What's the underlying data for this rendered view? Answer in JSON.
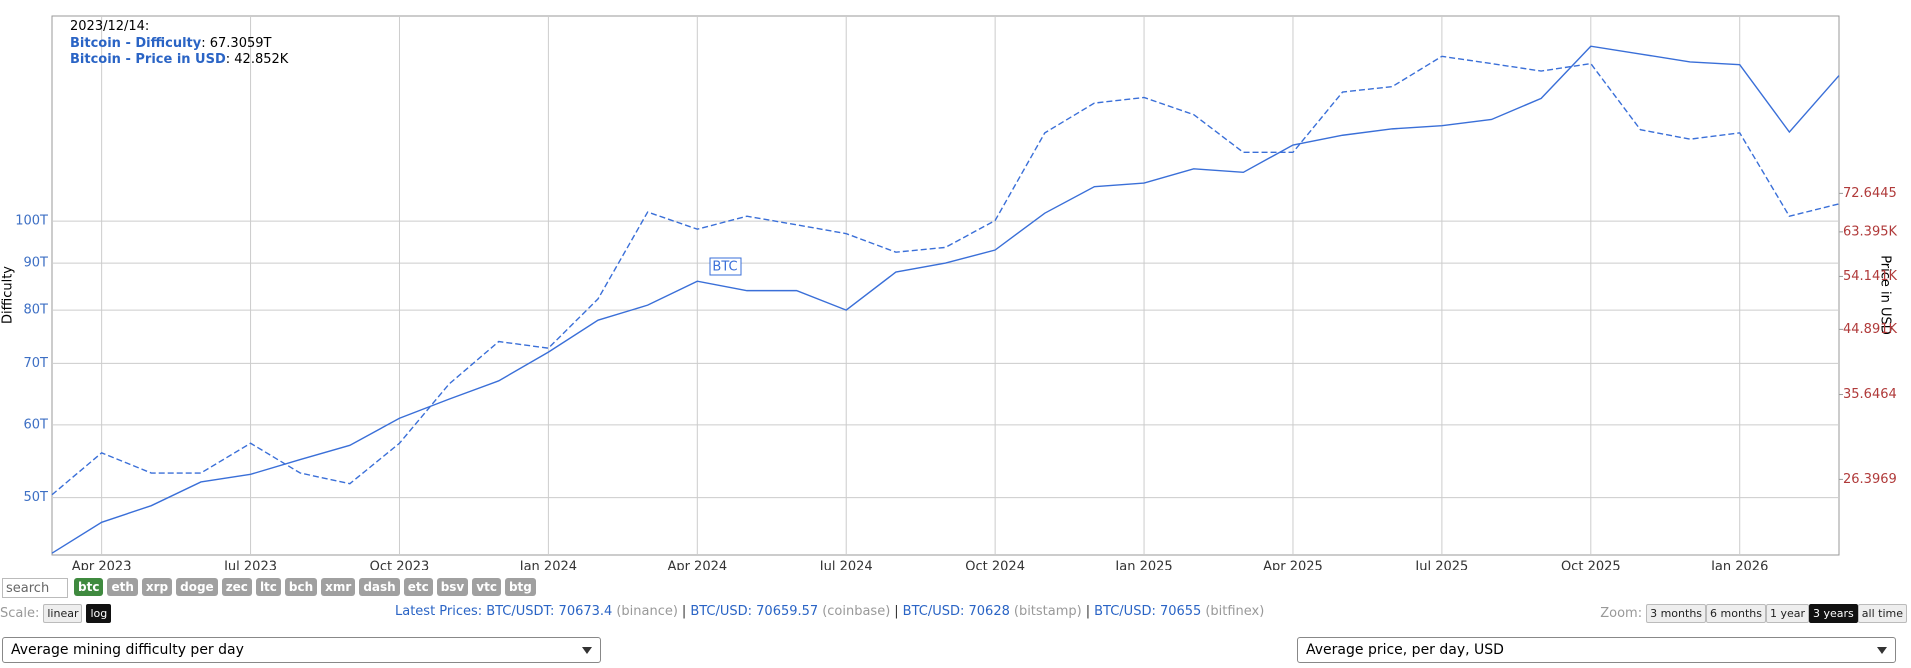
{
  "chart_data": {
    "type": "line",
    "x": [
      "2023-03",
      "2023-04",
      "2023-05",
      "2023-06",
      "2023-07",
      "2023-08",
      "2023-09",
      "2023-10",
      "2023-11",
      "2023-12",
      "2024-01",
      "2024-02",
      "2024-03",
      "2024-04",
      "2024-05",
      "2024-06",
      "2024-07",
      "2024-08",
      "2024-09",
      "2024-10",
      "2024-11",
      "2024-12",
      "2025-01",
      "2025-02",
      "2025-03",
      "2025-04",
      "2025-05",
      "2025-06",
      "2025-07",
      "2025-08",
      "2025-09",
      "2025-10",
      "2025-11",
      "2025-12",
      "2026-01",
      "2026-02",
      "2026-03"
    ],
    "xlim": [
      "2023-03",
      "2026-03"
    ],
    "xticks": [
      {
        "value": "2023-04",
        "label": "Apr 2023"
      },
      {
        "value": "2023-07",
        "label": "Jul 2023"
      },
      {
        "value": "2023-10",
        "label": "Oct 2023"
      },
      {
        "value": "2024-01",
        "label": "Jan 2024"
      },
      {
        "value": "2024-04",
        "label": "Apr 2024"
      },
      {
        "value": "2024-07",
        "label": "Jul 2024"
      },
      {
        "value": "2024-10",
        "label": "Oct 2024"
      },
      {
        "value": "2025-01",
        "label": "Jan 2025"
      },
      {
        "value": "2025-04",
        "label": "Apr 2025"
      },
      {
        "value": "2025-07",
        "label": "Jul 2025"
      },
      {
        "value": "2025-10",
        "label": "Oct 2025"
      },
      {
        "value": "2026-01",
        "label": "Jan 2026"
      }
    ],
    "ylim": [
      43.3,
      167.2
    ],
    "yticks": [
      {
        "value": 50,
        "label": "50T"
      },
      {
        "value": 60,
        "label": "60T"
      },
      {
        "value": 70,
        "label": "70T"
      },
      {
        "value": 80,
        "label": "80T"
      },
      {
        "value": 90,
        "label": "90T"
      },
      {
        "value": 100,
        "label": "100T"
      }
    ],
    "y2lim": [
      20.2,
      136.1
    ],
    "y2ticks": [
      26.3969,
      35.6464,
      {
        "value": 44.891,
        "label": "44.891K"
      },
      {
        "value": 54.141,
        "label": "54.141K"
      },
      {
        "value": 63.395,
        "label": "63.395K"
      },
      72.6445
    ],
    "log_scale": true,
    "grid": true,
    "ylabel": "Difficulty",
    "y2label": "Price in USD",
    "annotation": "BTC",
    "tooltip": {
      "date": "2023/12/14:",
      "difficulty": "67.3059T",
      "price": "42.852K"
    },
    "series": [
      {
        "name": "Bitcoin - Difficulty",
        "color": "#3a6fd8",
        "dashed": false,
        "values": [
          43.5,
          47,
          49,
          52,
          53,
          55,
          57,
          61,
          64,
          67,
          72,
          78,
          81,
          86,
          84,
          84,
          80,
          88,
          90,
          93,
          102,
          109,
          110,
          114,
          113,
          121,
          124,
          126,
          127,
          129,
          136,
          155,
          152,
          149,
          148,
          125,
          144
        ]
      },
      {
        "name": "Bitcoin - Price in USD",
        "color": "#3a6fd8",
        "dashed": true,
        "axis": "y2",
        "values": [
          25,
          29,
          27,
          27,
          30,
          27,
          26,
          30,
          37,
          43,
          42,
          50,
          68,
          64,
          67,
          65,
          63,
          59,
          60,
          66,
          90,
          100,
          102,
          96,
          84,
          84,
          104,
          106,
          118,
          115,
          112,
          115,
          91,
          88,
          90,
          67,
          70
        ]
      }
    ]
  },
  "controls": {
    "search_placeholder": "search",
    "coins": [
      "btc",
      "eth",
      "xrp",
      "doge",
      "zec",
      "ltc",
      "bch",
      "xmr",
      "dash",
      "etc",
      "bsv",
      "vtc",
      "btg"
    ],
    "active_coin": 0,
    "scale_label": "Scale:",
    "scale_options": [
      "linear",
      "log"
    ],
    "active_scale": 1,
    "latest_label": "Latest Prices:",
    "prices": [
      {
        "pair": "BTC/USDT: 70673.4",
        "exchange": "(binance)"
      },
      {
        "pair": "BTC/USD: 70659.57",
        "exchange": "(coinbase)"
      },
      {
        "pair": "BTC/USD: 70628",
        "exchange": "(bitstamp)"
      },
      {
        "pair": "BTC/USD: 70655",
        "exchange": "(bitfinex)"
      }
    ],
    "separator": "|",
    "zoom_label": "Zoom:",
    "zoom_options": [
      "3 months",
      "6 months",
      "1 year",
      "3 years",
      "all time"
    ],
    "active_zoom": 3,
    "left_select": "Average mining difficulty per day",
    "right_select": "Average price, per day, USD"
  }
}
